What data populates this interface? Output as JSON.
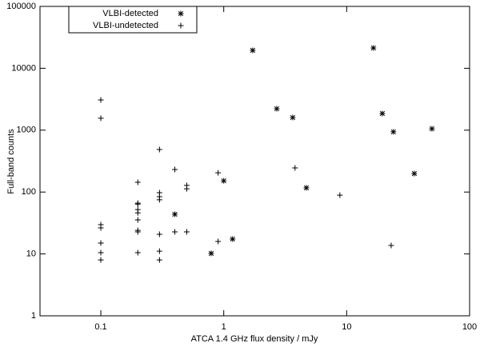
{
  "chart_data": {
    "type": "scatter",
    "x_label": "ATCA 1.4 GHz flux density / mJy",
    "y_label": "Full-band counts",
    "xscale": "log",
    "yscale": "log",
    "xlim": [
      0.032,
      100
    ],
    "ylim": [
      1,
      100000
    ],
    "xticks": [
      0.1,
      1,
      10,
      100
    ],
    "yticks": [
      1,
      10,
      100,
      1000,
      10000,
      100000
    ],
    "legend": "top-left",
    "series": [
      {
        "name": "VLBI-detected",
        "color": "#000000",
        "marker": "star",
        "x": [
          1.72,
          2.7,
          3.64,
          4.7,
          16.5,
          19.5,
          24,
          49.4,
          35.5,
          1.0,
          0.4,
          1.18,
          0.79
        ],
        "values": [
          19500,
          2220,
          1600,
          117,
          21300,
          1860,
          940,
          1055,
          199,
          152,
          43.7,
          17.4,
          10.2
        ]
      },
      {
        "name": "VLBI-undetected",
        "color": "#000000",
        "marker": "plus",
        "x": [
          0.1,
          0.1,
          0.1,
          0.1,
          0.1,
          0.1,
          0.1,
          0.2,
          0.2,
          0.2,
          0.2,
          0.2,
          0.2,
          0.2,
          0.2,
          0.2,
          0.3,
          0.3,
          0.3,
          0.3,
          0.3,
          0.3,
          0.3,
          0.4,
          0.4,
          0.5,
          0.5,
          0.5,
          0.9,
          0.9,
          3.8,
          8.8,
          23
        ],
        "values": [
          3080,
          1560,
          29.7,
          26.4,
          15,
          10.5,
          8.0,
          144,
          66,
          64,
          52,
          46,
          35.5,
          24,
          22.7,
          10.5,
          487,
          97.5,
          84,
          75,
          20.8,
          11.1,
          8.0,
          231,
          22.7,
          128,
          113,
          22.7,
          205,
          15.9,
          246,
          89,
          13.7
        ]
      }
    ]
  }
}
